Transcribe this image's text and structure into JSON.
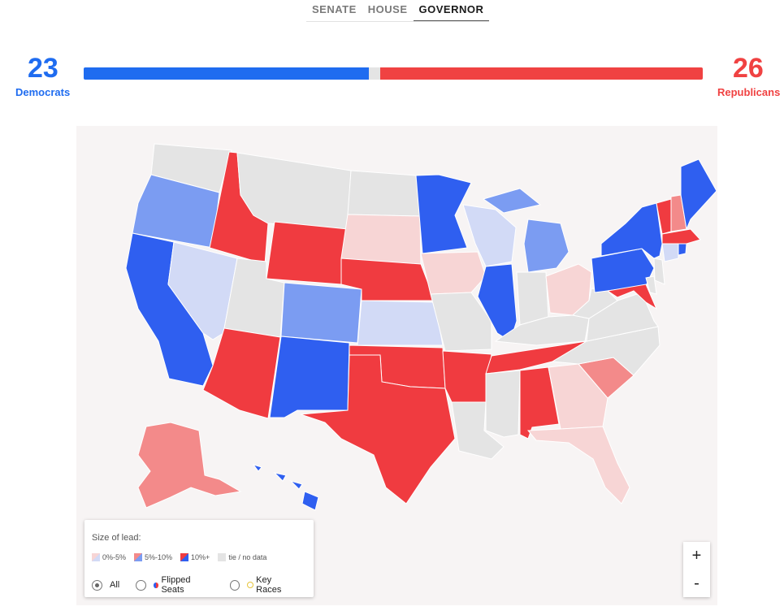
{
  "tabs": [
    {
      "label": "SENATE",
      "active": false
    },
    {
      "label": "HOUSE",
      "active": false
    },
    {
      "label": "GOVERNOR",
      "active": true
    }
  ],
  "democrats": {
    "count": "23",
    "label": "Democrats",
    "color": "#1f6cf0"
  },
  "republicans": {
    "count": "26",
    "label": "Republicans",
    "color": "#f04242"
  },
  "seat_bar": {
    "dem_seats": 23,
    "rep_seats": 26,
    "total_seats": 50
  },
  "colors": {
    "dem_strong": "#2f5ff0",
    "dem_medium": "#7b9cf2",
    "dem_light": "#d2daf6",
    "rep_strong": "#f03b40",
    "rep_medium": "#f38a8a",
    "rep_light": "#f7d5d5",
    "none": "#e4e4e4"
  },
  "legend": {
    "title": "Size of lead:",
    "swatches": [
      {
        "label": "0%-5%",
        "dem": "#d2daf6",
        "rep": "#f7d5d5"
      },
      {
        "label": "5%-10%",
        "dem": "#7b9cf2",
        "rep": "#f38a8a"
      },
      {
        "label": "10%+",
        "dem": "#2f5ff0",
        "rep": "#f03b40"
      },
      {
        "label": "tie / no data",
        "dem": "#e4e4e4",
        "rep": "#e4e4e4"
      }
    ],
    "filters": [
      {
        "label": "All",
        "selected": true
      },
      {
        "label": "Flipped Seats",
        "selected": false,
        "icon": "flipped-dot-icon"
      },
      {
        "label": "Key Races",
        "selected": false,
        "icon": "key-race-dot-icon"
      }
    ]
  },
  "zoom": {
    "in_label": "+",
    "out_label": "-"
  },
  "states": {
    "WA": "none",
    "OR": "dem_medium",
    "CA": "dem_strong",
    "NV": "dem_light",
    "ID": "rep_strong",
    "MT": "none",
    "WY": "rep_strong",
    "UT": "none",
    "AZ": "rep_strong",
    "CO": "dem_medium",
    "NM": "dem_strong",
    "ND": "none",
    "SD": "rep_light",
    "NE": "rep_strong",
    "KS": "dem_light",
    "OK": "rep_strong",
    "TX": "rep_strong",
    "MN": "dem_strong",
    "IA": "rep_light",
    "MO": "none",
    "AR": "rep_strong",
    "LA": "none",
    "WI": "dem_light",
    "IL": "dem_strong",
    "MI": "dem_medium",
    "IN": "none",
    "OH": "rep_light",
    "KY": "none",
    "TN": "rep_strong",
    "MS": "none",
    "AL": "rep_strong",
    "GA": "rep_light",
    "FL": "rep_light",
    "SC": "rep_medium",
    "NC": "none",
    "VA": "none",
    "WV": "none",
    "PA": "dem_strong",
    "NY": "dem_strong",
    "MD": "rep_strong",
    "DE": "none",
    "NJ": "none",
    "VT": "rep_strong",
    "NH": "rep_medium",
    "ME": "dem_strong",
    "MA": "rep_strong",
    "CT": "dem_light",
    "RI": "dem_strong",
    "AK": "rep_medium",
    "HI": "dem_strong"
  }
}
